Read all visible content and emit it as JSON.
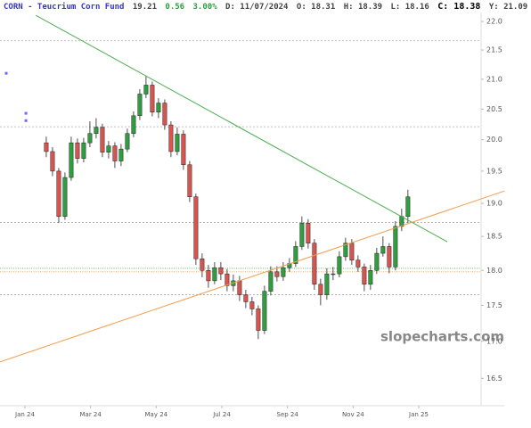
{
  "chart_data": {
    "type": "candlestick",
    "header": {
      "symbol": "CORN - Teucrium Corn Fund",
      "last": "19.21",
      "change": "0.56",
      "change_pct": "3.00%",
      "date": "D: 11/07/2024",
      "open": "O: 18.31",
      "high": "H: 18.39",
      "low": "L: 18.16",
      "close": "C: 18.38",
      "year_high": "Y: 21.09"
    },
    "watermark": "slopecharts.com",
    "log_scale": true,
    "ylim": [
      16.14,
      22.16
    ],
    "yticks": [
      16.5,
      {
        "value": 17,
        "label": "17.0"
      },
      17.5,
      {
        "value": 18,
        "label": "18.0"
      },
      18.5,
      {
        "value": 19,
        "label": "19.0"
      },
      19.5,
      {
        "value": 20,
        "label": "20.0"
      },
      20.5,
      {
        "value": 21,
        "label": "21.0"
      },
      21.5,
      {
        "value": 22,
        "label": "22.0"
      }
    ],
    "xlim": [
      -0.76,
      13.9
    ],
    "xticks": [
      {
        "value": 0,
        "label": "Jan 24"
      },
      {
        "value": 2,
        "label": "Mar 24"
      },
      {
        "value": 4,
        "label": "May 24"
      },
      {
        "value": 6,
        "label": "Jul 24"
      },
      {
        "value": 8,
        "label": "Sep 24"
      },
      {
        "value": 10,
        "label": "Nov 24"
      },
      {
        "value": 12,
        "label": "Jan 25"
      }
    ],
    "up_color": "#2e9e3e",
    "down_color": "#d9534f",
    "x": [
      0.65,
      0.84,
      1.03,
      1.22,
      1.41,
      1.6,
      1.79,
      1.98,
      2.17,
      2.36,
      2.55,
      2.74,
      2.93,
      3.12,
      3.31,
      3.5,
      3.69,
      3.88,
      4.07,
      4.26,
      4.45,
      4.64,
      4.83,
      5.02,
      5.21,
      5.4,
      5.59,
      5.78,
      5.97,
      6.16,
      6.35,
      6.54,
      6.73,
      6.92,
      7.11,
      7.3,
      7.49,
      7.68,
      7.87,
      8.06,
      8.25,
      8.44,
      8.63,
      8.82,
      9.01,
      9.2,
      9.39,
      9.58,
      9.77,
      9.96,
      10.15,
      10.34,
      10.53,
      10.72,
      10.91,
      11.1,
      11.29,
      11.48,
      11.67
    ],
    "open": [
      19.95,
      19.81,
      19.5,
      18.8,
      19.4,
      19.95,
      19.7,
      19.95,
      20.1,
      20.2,
      19.8,
      19.9,
      19.66,
      19.85,
      20.1,
      20.39,
      20.75,
      20.9,
      20.45,
      20.6,
      20.24,
      19.81,
      20.09,
      19.6,
      19.1,
      18.17,
      18.0,
      17.85,
      18.04,
      17.95,
      17.78,
      17.85,
      17.65,
      17.55,
      17.45,
      17.15,
      17.7,
      17.98,
      17.91,
      18.04,
      18.1,
      18.35,
      18.7,
      18.4,
      17.8,
      17.65,
      17.95,
      17.95,
      18.2,
      18.4,
      18.15,
      18.05,
      17.8,
      18.0,
      18.25,
      18.35,
      18.05,
      18.65,
      18.8
    ],
    "high": [
      20.05,
      19.88,
      19.55,
      19.48,
      20.05,
      20.02,
      20.03,
      20.3,
      20.35,
      20.26,
      19.98,
      19.96,
      19.93,
      20.18,
      20.46,
      20.83,
      21.05,
      20.96,
      20.68,
      20.66,
      20.3,
      20.2,
      20.15,
      19.66,
      19.15,
      18.25,
      18.08,
      18.12,
      18.12,
      18.02,
      17.94,
      17.92,
      17.72,
      17.62,
      17.5,
      17.78,
      18.06,
      18.06,
      18.12,
      18.18,
      18.43,
      18.8,
      18.76,
      18.46,
      17.88,
      18.03,
      18.05,
      18.28,
      18.48,
      18.46,
      18.22,
      18.1,
      18.08,
      18.33,
      18.5,
      18.4,
      18.73,
      18.92,
      19.21
    ],
    "low": [
      19.72,
      19.42,
      18.7,
      18.75,
      19.35,
      19.62,
      19.64,
      19.88,
      20.02,
      19.72,
      19.7,
      19.55,
      19.58,
      19.8,
      20.04,
      20.32,
      20.68,
      20.38,
      20.35,
      20.16,
      19.72,
      19.75,
      19.52,
      19.02,
      18.08,
      17.9,
      17.75,
      17.8,
      17.86,
      17.7,
      17.7,
      17.56,
      17.46,
      17.36,
      17.03,
      17.1,
      17.64,
      17.84,
      17.85,
      17.98,
      18.05,
      18.3,
      18.32,
      17.72,
      17.5,
      17.58,
      17.86,
      17.9,
      18.14,
      18.08,
      17.98,
      17.7,
      17.72,
      17.95,
      18.2,
      17.96,
      18.0,
      18.58,
      18.7
    ],
    "close": [
      19.81,
      19.5,
      18.8,
      19.4,
      19.95,
      19.7,
      19.95,
      20.1,
      20.2,
      19.8,
      19.9,
      19.66,
      19.85,
      20.1,
      20.39,
      20.75,
      20.9,
      20.45,
      20.6,
      20.24,
      19.81,
      20.09,
      19.6,
      19.1,
      18.17,
      18.0,
      17.85,
      18.04,
      17.95,
      17.78,
      17.85,
      17.65,
      17.55,
      17.45,
      17.15,
      17.7,
      17.98,
      17.91,
      18.04,
      18.1,
      18.35,
      18.7,
      18.4,
      17.8,
      17.65,
      17.95,
      17.95,
      18.2,
      18.4,
      18.15,
      18.05,
      17.8,
      18.0,
      18.25,
      18.35,
      18.05,
      18.65,
      18.8,
      19.1
    ],
    "trendlines": [
      {
        "color": "#4caf50",
        "x": [
          0.33,
          12.87
        ],
        "y": [
          22.11,
          18.42
        ]
      },
      {
        "color": "#f39c4a",
        "x": [
          -0.76,
          14.61
        ],
        "y": [
          16.72,
          19.19
        ]
      }
    ],
    "levels": [
      {
        "value": 21.66,
        "color": "#aaaaaa",
        "style": "dashed"
      },
      {
        "value": 20.21,
        "color": "#aaaaaa",
        "style": "dashed"
      },
      {
        "value": 18.71,
        "color": "#aaaaaa",
        "style": "dashed"
      },
      {
        "value": 18.03,
        "color": "#4caf50",
        "style": "dotted"
      },
      {
        "value": 17.98,
        "color": "#f39c4a",
        "style": "dotted"
      },
      {
        "value": 17.65,
        "color": "#aaaaaa",
        "style": "dashed"
      }
    ],
    "points": {
      "color": "#6a6aff",
      "x": [
        -0.57,
        0.03,
        0.03
      ],
      "y": [
        21.1,
        20.43,
        20.31
      ]
    }
  }
}
